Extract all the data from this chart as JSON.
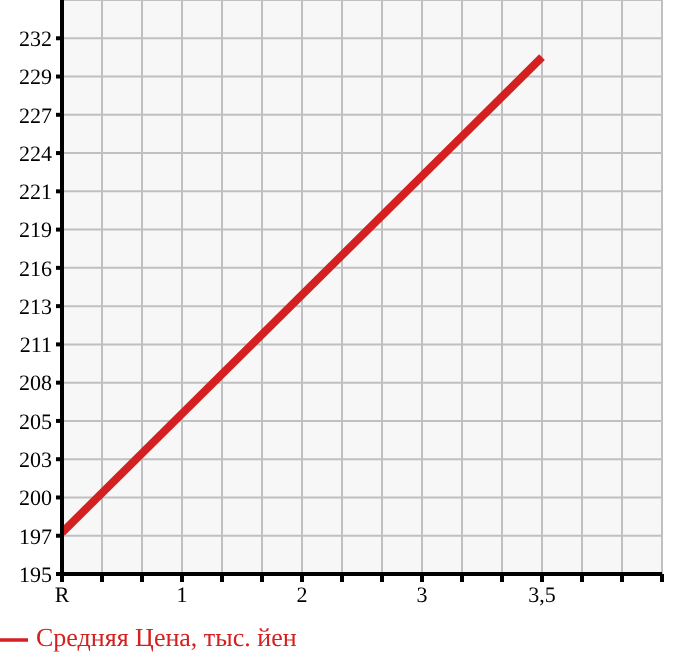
{
  "chart_data": {
    "type": "line",
    "categories": [
      "R",
      null,
      null,
      "1",
      null,
      null,
      "2",
      null,
      null,
      "3",
      null,
      null,
      "3,5",
      null,
      null,
      null
    ],
    "series": [
      {
        "name": "Средняя Цена, тыс. йен",
        "color": "#d42020",
        "values": [
          197.5,
          null,
          null,
          null,
          null,
          null,
          null,
          null,
          null,
          null,
          null,
          null,
          230.8,
          null,
          null,
          null
        ]
      }
    ],
    "ylim": [
      194.6,
      234.8
    ],
    "yticks": [
      {
        "value": 194.6,
        "label": "195"
      },
      {
        "value": 197.28,
        "label": "197"
      },
      {
        "value": 199.96,
        "label": "200"
      },
      {
        "value": 202.64,
        "label": "203"
      },
      {
        "value": 205.32,
        "label": "205"
      },
      {
        "value": 208.0,
        "label": "208"
      },
      {
        "value": 210.68,
        "label": "211"
      },
      {
        "value": 213.36,
        "label": "213"
      },
      {
        "value": 216.04,
        "label": "216"
      },
      {
        "value": 218.72,
        "label": "219"
      },
      {
        "value": 221.4,
        "label": "221"
      },
      {
        "value": 224.08,
        "label": "224"
      },
      {
        "value": 226.76,
        "label": "227"
      },
      {
        "value": 229.44,
        "label": "229"
      },
      {
        "value": 232.12,
        "label": "232"
      }
    ],
    "grid": true,
    "legend": "bottom",
    "marker": "none",
    "line_style": "solid"
  }
}
